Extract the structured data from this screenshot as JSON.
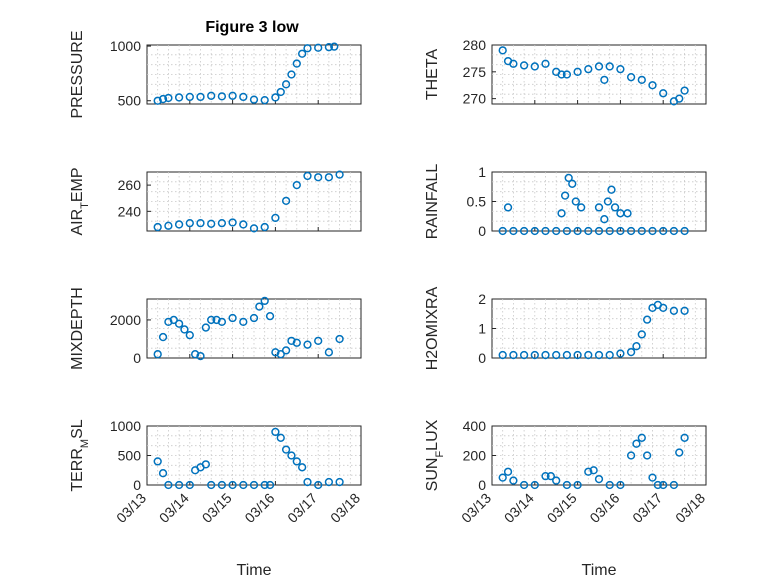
{
  "figure_title": "Figure 3 low",
  "chart_data": [
    {
      "type": "scatter",
      "ylabel": "PRESSURE",
      "title": "Figure 3 low",
      "xlim": [
        "03/13",
        "03/18"
      ],
      "ylim": [
        470,
        1010
      ],
      "yticks": [
        500,
        1000
      ],
      "x": [
        "03/13 06:00",
        "03/13 09:00",
        "03/13 12:00",
        "03/13 18:00",
        "03/14 00:00",
        "03/14 06:00",
        "03/14 12:00",
        "03/14 18:00",
        "03/15 00:00",
        "03/15 06:00",
        "03/15 12:00",
        "03/15 18:00",
        "03/16 00:00",
        "03/16 03:00",
        "03/16 06:00",
        "03/16 09:00",
        "03/16 12:00",
        "03/16 15:00",
        "03/16 18:00",
        "03/17 00:00",
        "03/17 06:00",
        "03/17 09:00"
      ],
      "y": [
        500,
        515,
        525,
        530,
        535,
        535,
        545,
        540,
        545,
        535,
        510,
        505,
        530,
        580,
        650,
        740,
        840,
        930,
        980,
        985,
        990,
        995
      ]
    },
    {
      "type": "scatter",
      "ylabel": "THETA",
      "xlim": [
        "03/13",
        "03/18"
      ],
      "ylim": [
        269,
        280
      ],
      "yticks": [
        270,
        275,
        280
      ],
      "x": [
        "03/13 06:00",
        "03/13 09:00",
        "03/13 12:00",
        "03/13 18:00",
        "03/14 00:00",
        "03/14 06:00",
        "03/14 12:00",
        "03/14 15:00",
        "03/14 18:00",
        "03/15 00:00",
        "03/15 06:00",
        "03/15 12:00",
        "03/15 15:00",
        "03/15 18:00",
        "03/16 00:00",
        "03/16 06:00",
        "03/16 12:00",
        "03/16 18:00",
        "03/17 00:00",
        "03/17 06:00",
        "03/17 09:00",
        "03/17 12:00"
      ],
      "y": [
        279,
        277,
        276.5,
        276.2,
        276,
        276.5,
        275,
        274.5,
        274.5,
        275,
        275.5,
        276,
        273.5,
        276,
        275.5,
        274,
        273.5,
        272.5,
        271,
        269.5,
        270,
        271.5
      ]
    },
    {
      "type": "scatter",
      "ylabel": "AIR_TEMP",
      "xlim": [
        "03/13",
        "03/18"
      ],
      "ylim": [
        225,
        270
      ],
      "yticks": [
        240,
        260
      ],
      "x": [
        "03/13 06:00",
        "03/13 12:00",
        "03/13 18:00",
        "03/14 00:00",
        "03/14 06:00",
        "03/14 12:00",
        "03/14 18:00",
        "03/15 00:00",
        "03/15 06:00",
        "03/15 12:00",
        "03/15 18:00",
        "03/16 00:00",
        "03/16 06:00",
        "03/16 12:00",
        "03/16 18:00",
        "03/17 00:00",
        "03/17 06:00",
        "03/17 12:00"
      ],
      "y": [
        228,
        229,
        230,
        231,
        231,
        230.5,
        231,
        231.5,
        230,
        227,
        228,
        235,
        248,
        260,
        267,
        266,
        266,
        268
      ]
    },
    {
      "type": "scatter",
      "ylabel": "RAINFALL",
      "xlim": [
        "03/13",
        "03/18"
      ],
      "ylim": [
        0,
        1
      ],
      "yticks": [
        0,
        0.5,
        1
      ],
      "x": [
        "03/13 06:00",
        "03/13 12:00",
        "03/13 18:00",
        "03/14 00:00",
        "03/14 06:00",
        "03/14 12:00",
        "03/14 18:00",
        "03/15 00:00",
        "03/15 06:00",
        "03/15 12:00",
        "03/15 18:00",
        "03/16 00:00",
        "03/16 06:00",
        "03/16 12:00",
        "03/16 18:00",
        "03/17 00:00",
        "03/17 06:00",
        "03/17 12:00",
        "03/13 09:00",
        "03/14 15:00",
        "03/14 17:00",
        "03/14 19:00",
        "03/14 21:00",
        "03/14 23:00",
        "03/15 02:00",
        "03/15 12:00",
        "03/15 15:00",
        "03/15 17:00",
        "03/15 19:00",
        "03/15 21:00",
        "03/16 00:00",
        "03/16 04:00"
      ],
      "y": [
        0,
        0,
        0,
        0,
        0,
        0,
        0,
        0,
        0,
        0,
        0,
        0,
        0,
        0,
        0,
        0,
        0,
        0,
        0.4,
        0.3,
        0.6,
        0.9,
        0.8,
        0.5,
        0.4,
        0.4,
        0.2,
        0.5,
        0.7,
        0.4,
        0.3,
        0.3
      ]
    },
    {
      "type": "scatter",
      "ylabel": "MIXDEPTH",
      "xlim": [
        "03/13",
        "03/18"
      ],
      "ylim": [
        0,
        3100
      ],
      "yticks": [
        0,
        2000
      ],
      "x": [
        "03/13 06:00",
        "03/13 09:00",
        "03/13 12:00",
        "03/13 15:00",
        "03/13 18:00",
        "03/13 21:00",
        "03/14 00:00",
        "03/14 03:00",
        "03/14 06:00",
        "03/14 09:00",
        "03/14 12:00",
        "03/14 15:00",
        "03/14 18:00",
        "03/15 00:00",
        "03/15 06:00",
        "03/15 12:00",
        "03/15 15:00",
        "03/15 18:00",
        "03/15 21:00",
        "03/16 00:00",
        "03/16 03:00",
        "03/16 06:00",
        "03/16 09:00",
        "03/16 12:00",
        "03/16 18:00",
        "03/17 00:00",
        "03/17 06:00",
        "03/17 12:00"
      ],
      "y": [
        200,
        1100,
        1900,
        2000,
        1800,
        1500,
        1200,
        200,
        100,
        1600,
        2000,
        2000,
        1900,
        2100,
        1900,
        2100,
        2700,
        3000,
        2200,
        300,
        200,
        400,
        900,
        800,
        700,
        900,
        300,
        1000
      ]
    },
    {
      "type": "scatter",
      "ylabel": "H2OMIXRA",
      "xlim": [
        "03/13",
        "03/18"
      ],
      "ylim": [
        0,
        2
      ],
      "yticks": [
        0,
        1,
        2
      ],
      "x": [
        "03/13 06:00",
        "03/13 12:00",
        "03/13 18:00",
        "03/14 00:00",
        "03/14 06:00",
        "03/14 12:00",
        "03/14 18:00",
        "03/15 00:00",
        "03/15 06:00",
        "03/15 12:00",
        "03/15 18:00",
        "03/16 00:00",
        "03/16 06:00",
        "03/16 09:00",
        "03/16 12:00",
        "03/16 15:00",
        "03/16 18:00",
        "03/16 21:00",
        "03/17 00:00",
        "03/17 06:00",
        "03/17 12:00"
      ],
      "y": [
        0.1,
        0.1,
        0.1,
        0.1,
        0.1,
        0.1,
        0.1,
        0.1,
        0.1,
        0.1,
        0.1,
        0.15,
        0.2,
        0.4,
        0.8,
        1.3,
        1.7,
        1.8,
        1.7,
        1.6,
        1.6
      ]
    },
    {
      "type": "scatter",
      "ylabel": "TERR_MSL",
      "xlim": [
        "03/13",
        "03/18"
      ],
      "ylim": [
        0,
        1000
      ],
      "yticks": [
        0,
        500,
        1000
      ],
      "x": [
        "03/13 06:00",
        "03/13 09:00",
        "03/13 12:00",
        "03/13 18:00",
        "03/14 00:00",
        "03/14 03:00",
        "03/14 06:00",
        "03/14 09:00",
        "03/14 12:00",
        "03/14 18:00",
        "03/15 00:00",
        "03/15 06:00",
        "03/15 12:00",
        "03/15 18:00",
        "03/15 21:00",
        "03/16 00:00",
        "03/16 03:00",
        "03/16 06:00",
        "03/16 09:00",
        "03/16 12:00",
        "03/16 15:00",
        "03/16 18:00",
        "03/17 00:00",
        "03/17 06:00",
        "03/17 12:00"
      ],
      "y": [
        400,
        200,
        0,
        0,
        0,
        250,
        300,
        350,
        0,
        0,
        0,
        0,
        0,
        0,
        0,
        900,
        800,
        600,
        500,
        400,
        300,
        50,
        0,
        50,
        50
      ]
    },
    {
      "type": "scatter",
      "ylabel": "SUN_FLUX",
      "xlim": [
        "03/13",
        "03/18"
      ],
      "ylim": [
        0,
        400
      ],
      "yticks": [
        0,
        200,
        400
      ],
      "x": [
        "03/13 06:00",
        "03/13 09:00",
        "03/13 12:00",
        "03/13 18:00",
        "03/14 00:00",
        "03/14 06:00",
        "03/14 09:00",
        "03/14 12:00",
        "03/14 18:00",
        "03/15 00:00",
        "03/15 06:00",
        "03/15 09:00",
        "03/15 12:00",
        "03/15 18:00",
        "03/16 00:00",
        "03/16 06:00",
        "03/16 09:00",
        "03/16 12:00",
        "03/16 15:00",
        "03/16 18:00",
        "03/16 21:00",
        "03/17 00:00",
        "03/17 06:00",
        "03/17 09:00",
        "03/17 12:00"
      ],
      "y": [
        50,
        90,
        30,
        0,
        0,
        60,
        60,
        30,
        0,
        0,
        90,
        100,
        40,
        0,
        0,
        200,
        280,
        320,
        200,
        50,
        0,
        0,
        0,
        220,
        320
      ]
    }
  ],
  "xtick_labels": [
    "03/13",
    "03/14",
    "03/15",
    "03/16",
    "03/17",
    "03/18"
  ],
  "xlabel": "Time"
}
